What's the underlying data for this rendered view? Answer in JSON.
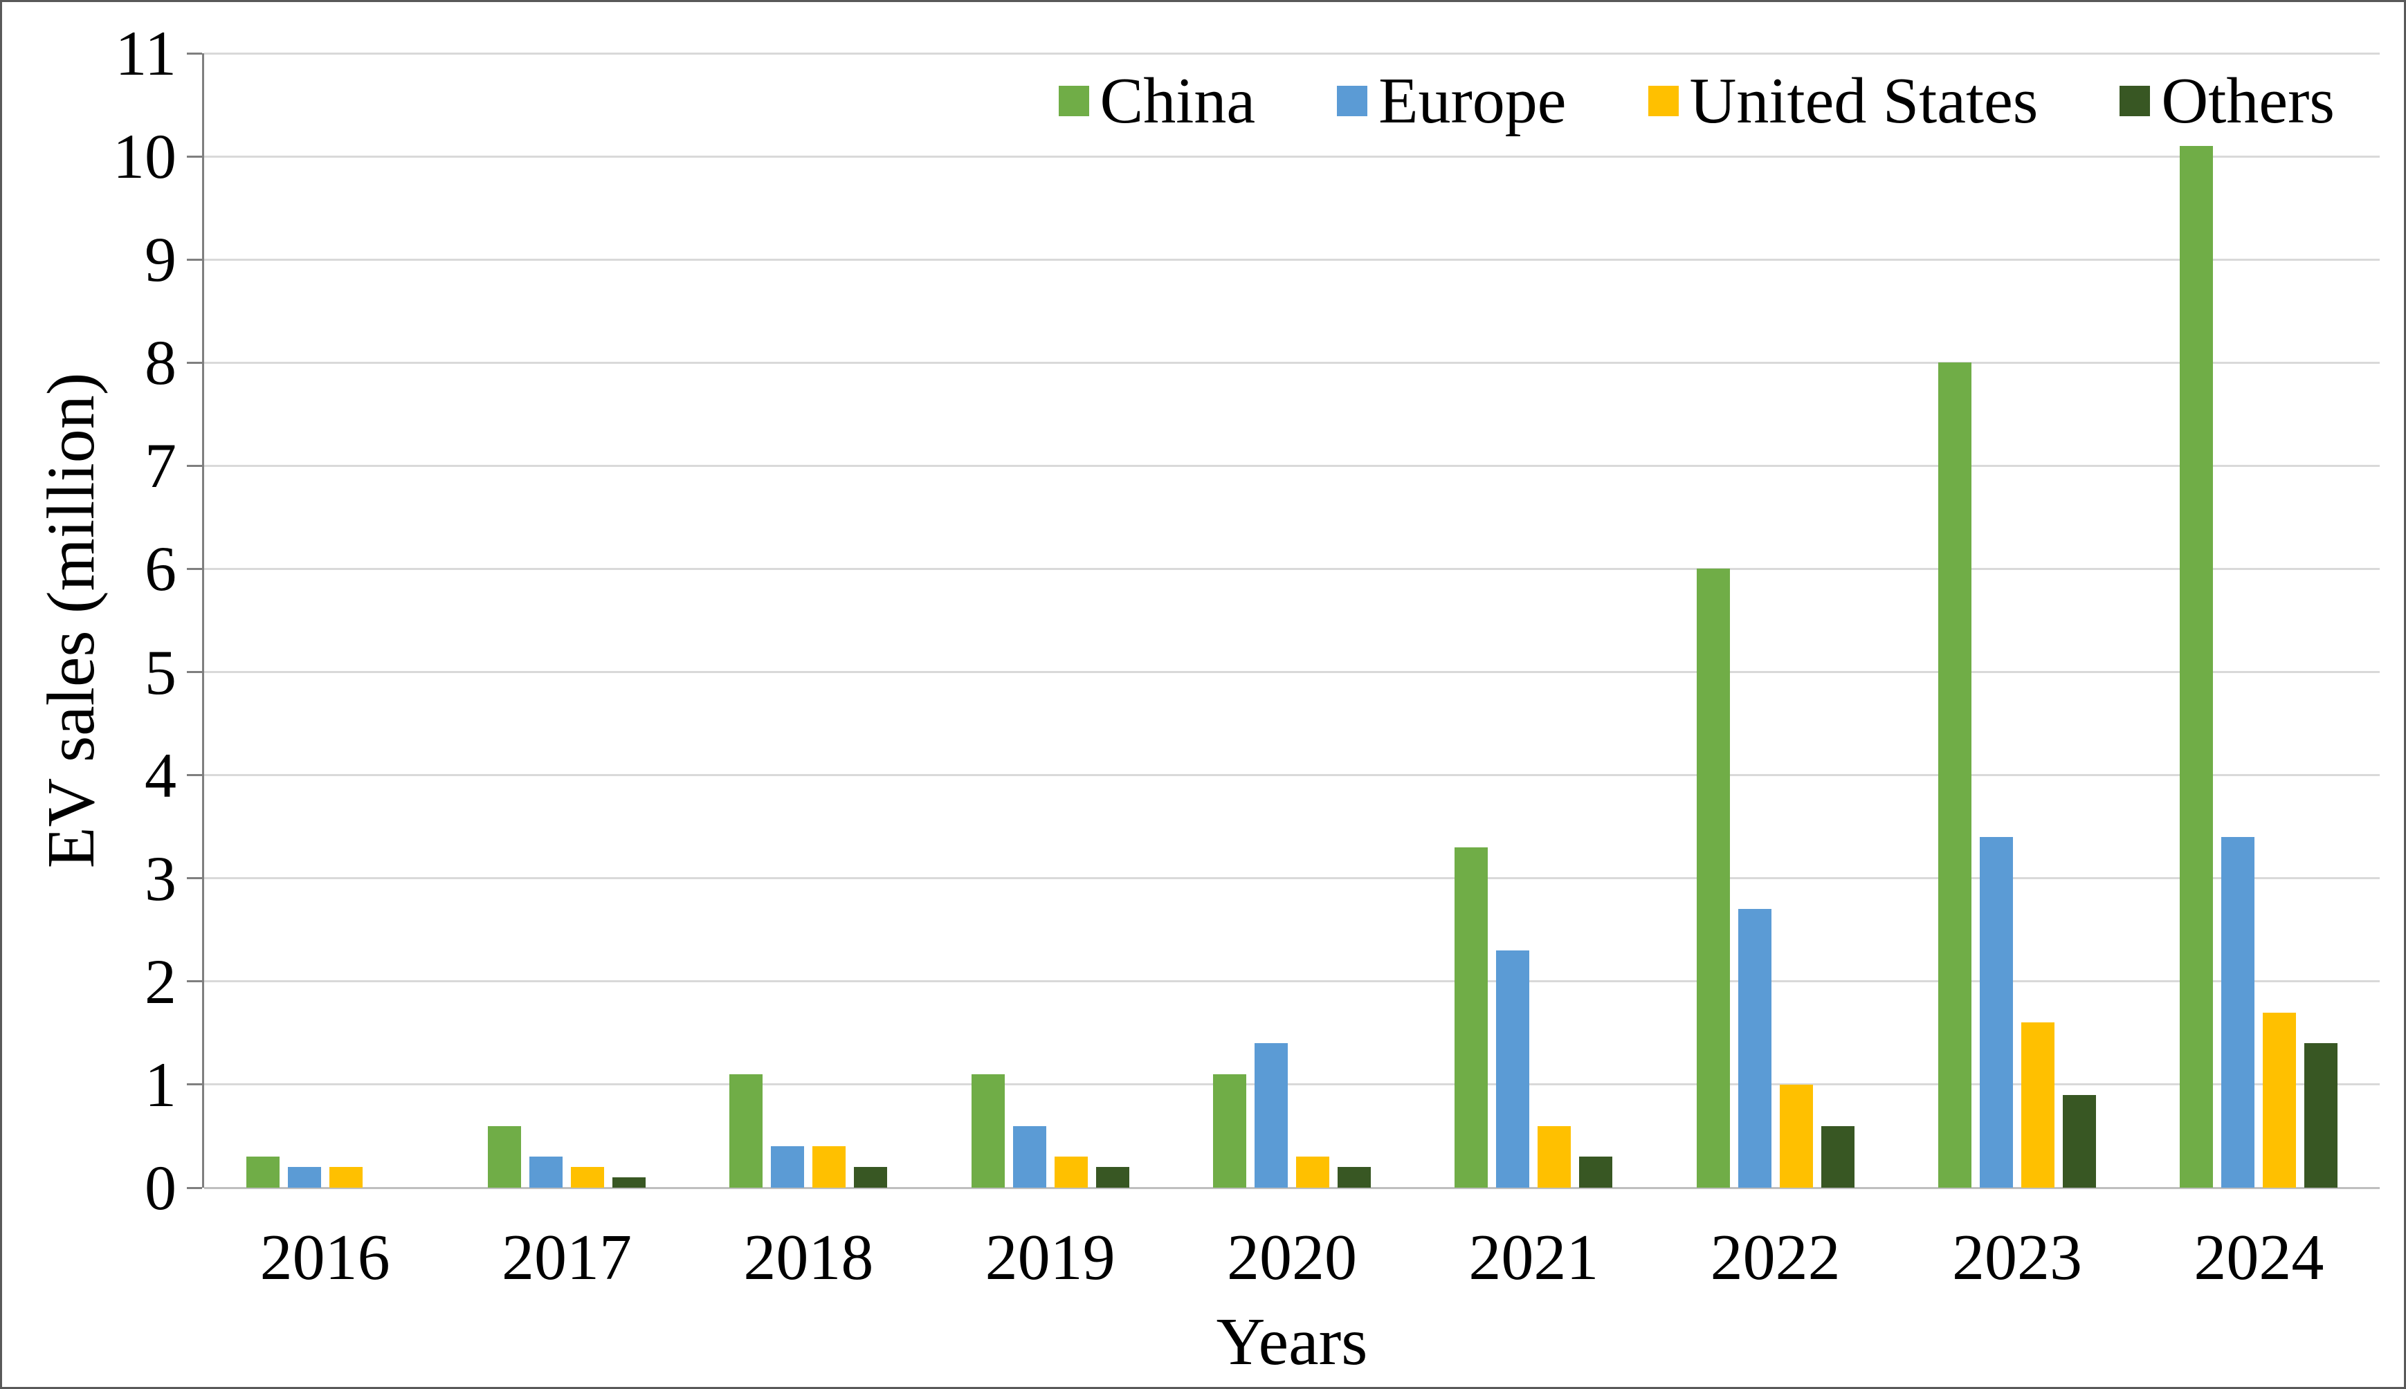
{
  "chart_data": {
    "type": "bar",
    "title": "",
    "xlabel": "Years",
    "ylabel": "EV sales (million)",
    "ylim": [
      0,
      11
    ],
    "ytick_step": 1,
    "grid": true,
    "legend_position": "top",
    "background": "#ffffff",
    "gridline_color": "#d9d9d9",
    "axis_color": "#7f7f7f",
    "categories": [
      "2016",
      "2017",
      "2018",
      "2019",
      "2020",
      "2021",
      "2022",
      "2023",
      "2024"
    ],
    "series": [
      {
        "name": "China",
        "color": "#70AD47",
        "values": [
          0.3,
          0.6,
          1.1,
          1.1,
          1.1,
          3.3,
          6.0,
          8.0,
          10.1
        ]
      },
      {
        "name": "Europe",
        "color": "#5B9BD5",
        "values": [
          0.2,
          0.3,
          0.4,
          0.6,
          1.4,
          2.3,
          2.7,
          3.4,
          3.4
        ]
      },
      {
        "name": "United States",
        "color": "#FFC000",
        "values": [
          0.2,
          0.2,
          0.4,
          0.3,
          0.3,
          0.6,
          1.0,
          1.6,
          1.7
        ]
      },
      {
        "name": "Others",
        "color": "#385723",
        "values": [
          0.0,
          0.1,
          0.2,
          0.2,
          0.2,
          0.3,
          0.6,
          0.9,
          1.4
        ]
      }
    ]
  }
}
